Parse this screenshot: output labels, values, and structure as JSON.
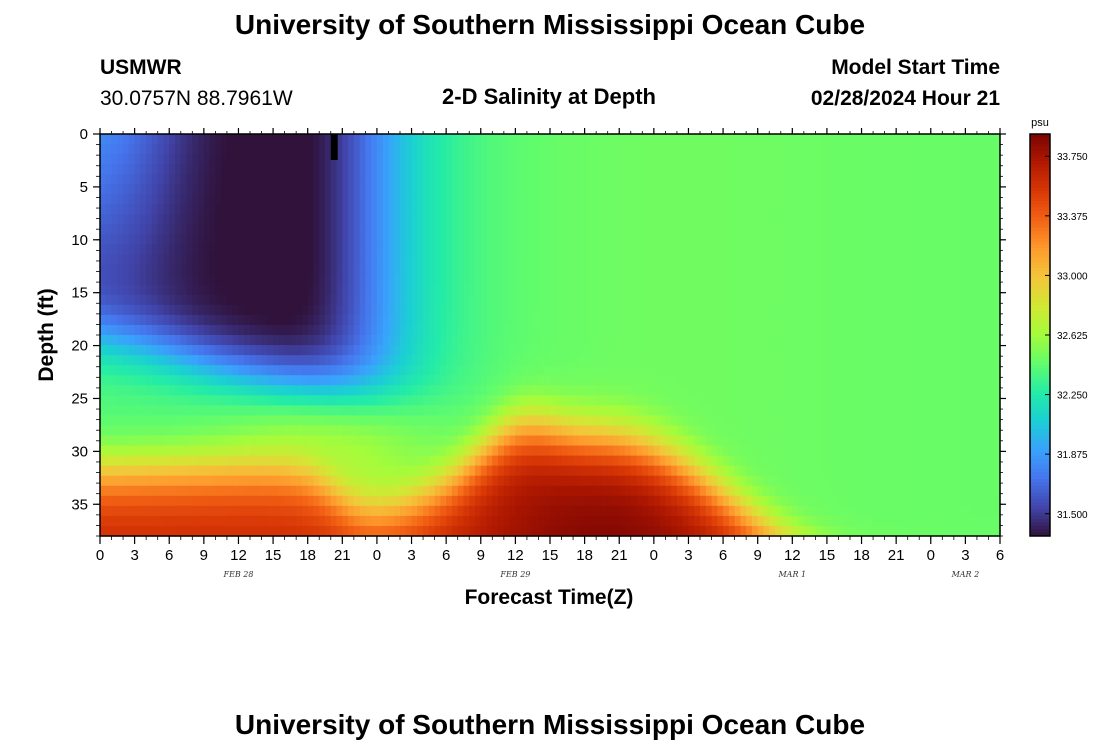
{
  "page": {
    "title_top": "University of Southern Mississippi Ocean Cube",
    "title_bottom": "University of Southern Mississippi Ocean Cube",
    "station_id": "USMWR",
    "station_coords": "30.0757N  88.7961W",
    "plot_title": "2-D Salinity at Depth",
    "model_start_label": "Model Start Time",
    "model_start_value": "02/28/2024 Hour 21"
  },
  "chart_data": {
    "type": "heatmap",
    "title": "2-D Salinity at Depth",
    "xlabel": "Forecast Time(Z)",
    "ylabel": "Depth (ft)",
    "x_range_hours": [
      0,
      78
    ],
    "y_range_ft": [
      0,
      38
    ],
    "x_tick_labels": [
      "0",
      "3",
      "6",
      "9",
      "12",
      "15",
      "18",
      "21",
      "0",
      "3",
      "6",
      "9",
      "12",
      "15",
      "18",
      "21",
      "0",
      "3",
      "6",
      "9",
      "12",
      "15",
      "18",
      "21",
      "0",
      "3",
      "6"
    ],
    "y_tick_labels": [
      "0",
      "5",
      "10",
      "15",
      "20",
      "25",
      "30",
      "35"
    ],
    "y_tick_values": [
      0,
      5,
      10,
      15,
      20,
      25,
      30,
      35
    ],
    "date_labels": [
      {
        "label": "FEB 28",
        "hour": 12
      },
      {
        "label": "FEB 29",
        "hour": 36
      },
      {
        "label": "MAR 1",
        "hour": 60
      },
      {
        "label": "MAR 2",
        "hour": 75
      }
    ],
    "now_marker_hour": 20.3,
    "colorbar": {
      "unit": "psu",
      "range": [
        31.36,
        33.89
      ],
      "tick_labels": [
        "33.750",
        "33.375",
        "33.000",
        "32.625",
        "32.250",
        "31.875",
        "31.500"
      ],
      "tick_values": [
        33.75,
        33.375,
        33.0,
        32.625,
        32.25,
        31.875,
        31.5
      ],
      "colors": [
        "#30123b",
        "#4145ab",
        "#4675ed",
        "#39a2fc",
        "#1bcfd4",
        "#24eca6",
        "#61fc6c",
        "#a4fc3b",
        "#d1e834",
        "#f3c63a",
        "#fe9b2d",
        "#f36315",
        "#d93806",
        "#b11901",
        "#7a0403"
      ]
    }
  }
}
